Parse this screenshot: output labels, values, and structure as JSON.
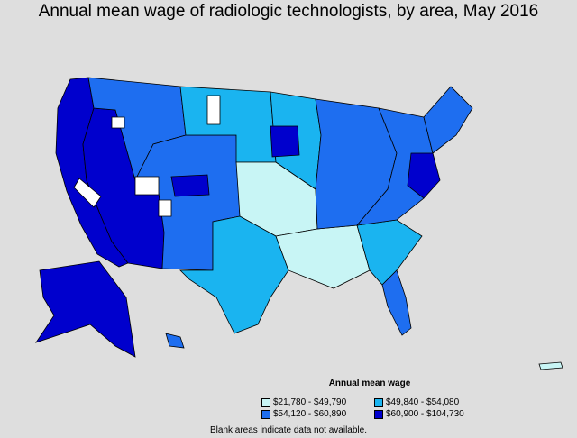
{
  "title": "Annual mean wage of radiologic technologists, by area, May 2016",
  "legend": {
    "title": "Annual mean wage",
    "items": [
      {
        "label": "$21,780 - $49,790",
        "color": "#c8f5f5"
      },
      {
        "label": "$49,840 - $54,080",
        "color": "#1ab4f0"
      },
      {
        "label": "$54,120 - $60,890",
        "color": "#1e6ef0"
      },
      {
        "label": "$60,900 - $104,730",
        "color": "#0000cd"
      }
    ]
  },
  "footnote": "Blank areas indicate data not available.",
  "map": {
    "regions": [
      {
        "name": "pacific-coast",
        "class": 3
      },
      {
        "name": "nevada-arizona",
        "class": 3
      },
      {
        "name": "northwest-interior",
        "class": 2
      },
      {
        "name": "mountain-west",
        "class": 2
      },
      {
        "name": "northern-plains",
        "class": 1
      },
      {
        "name": "central-plains",
        "class": 0
      },
      {
        "name": "texas",
        "class": 1
      },
      {
        "name": "south-central",
        "class": 0
      },
      {
        "name": "southeast",
        "class": 1
      },
      {
        "name": "midwest",
        "class": 1
      },
      {
        "name": "great-lakes",
        "class": 2
      },
      {
        "name": "northeast",
        "class": 2
      },
      {
        "name": "new-england",
        "class": 2
      },
      {
        "name": "mid-atlantic-metro",
        "class": 3
      },
      {
        "name": "colorado-front-range",
        "class": 3
      },
      {
        "name": "minnesota-metro",
        "class": 3
      },
      {
        "name": "florida",
        "class": 2
      },
      {
        "name": "alaska",
        "class": 3
      },
      {
        "name": "hawaii",
        "class": 2
      },
      {
        "name": "puerto-rico",
        "class": 0
      }
    ],
    "blank_areas": [
      "nevada-blank",
      "wyoming-blank",
      "idaho-blank",
      "montana-blank",
      "utah-blank"
    ]
  }
}
